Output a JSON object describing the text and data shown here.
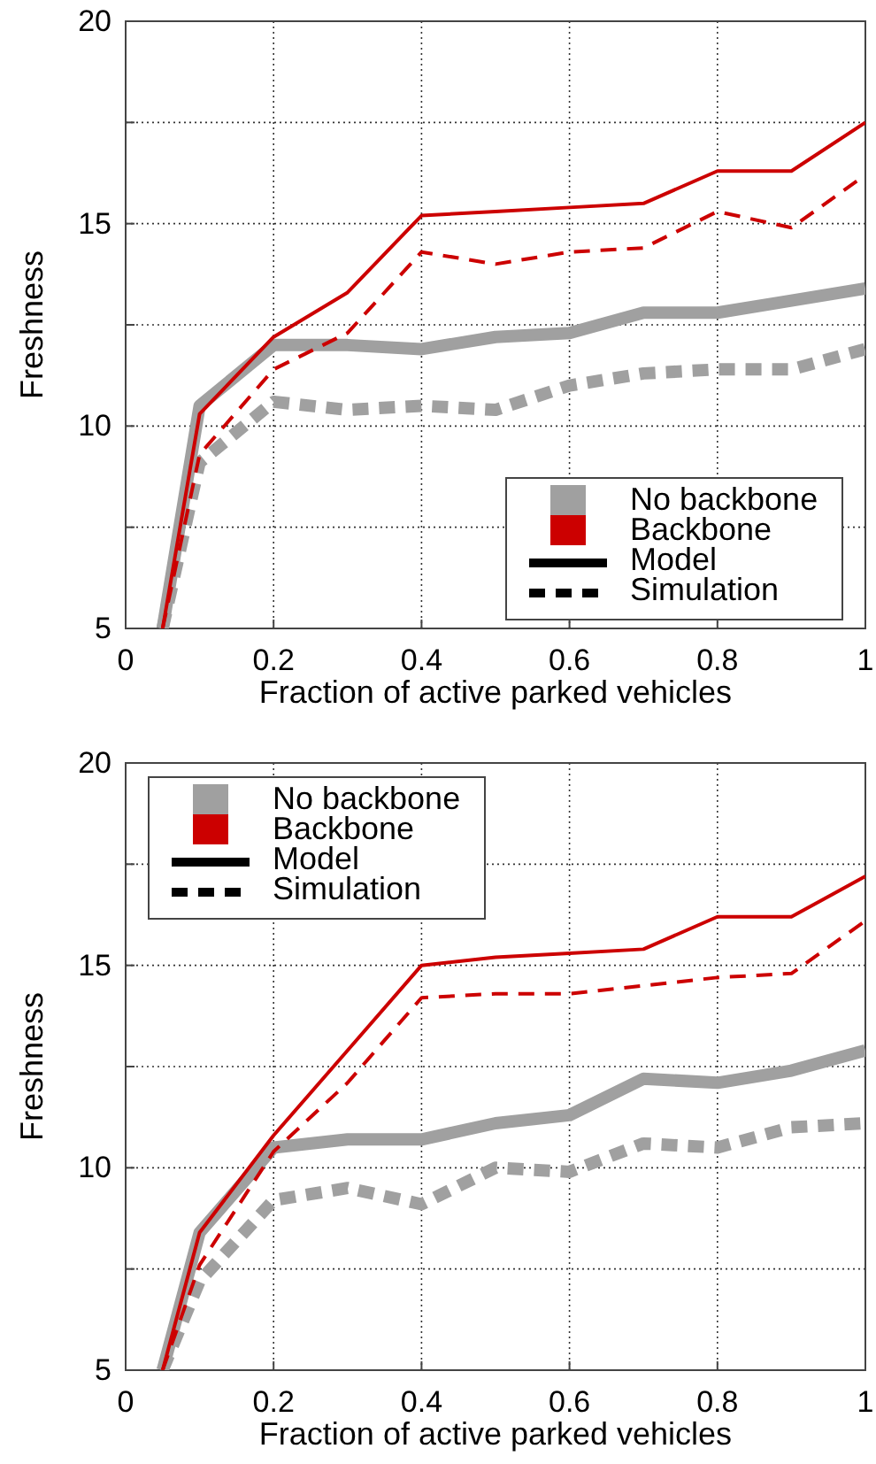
{
  "chart_data": [
    {
      "type": "line",
      "xlabel": "Fraction of active parked vehicles",
      "ylabel": "Freshness",
      "xlim": [
        0,
        1
      ],
      "ylim": [
        5,
        20
      ],
      "xticks": [
        0,
        0.2,
        0.4,
        0.6,
        0.8,
        1
      ],
      "yticks": [
        5,
        {
          "value": 7.5,
          "label": null
        },
        10,
        {
          "value": 12.5,
          "label": null
        },
        15,
        {
          "value": 17.5,
          "label": null
        },
        20
      ],
      "grid": true,
      "marker": "none",
      "annotations": [
        "No backbone",
        "Backbone",
        "Model",
        "Simulation"
      ],
      "series": [
        {
          "color": "#a0a0a0",
          "line_style": "solid",
          "x": [
            0.05,
            0.1,
            0.2,
            0.3,
            0.4,
            0.5,
            0.6,
            0.7,
            0.8,
            0.9,
            1
          ],
          "values": [
            5,
            10.5,
            12,
            12,
            11.9,
            12.2,
            12.3,
            12.8,
            12.8,
            13.1,
            13.4
          ]
        },
        {
          "color": "#a0a0a0",
          "line_style": "dashed",
          "x": [
            0.05,
            0.1,
            0.2,
            0.3,
            0.4,
            0.5,
            0.6,
            0.7,
            0.8,
            0.9,
            1
          ],
          "values": [
            5,
            9.1,
            10.6,
            10.4,
            10.5,
            10.4,
            11,
            11.3,
            11.4,
            11.4,
            11.9
          ]
        },
        {
          "color": "#cc0000",
          "line_style": "solid",
          "x": [
            0.05,
            0.1,
            0.2,
            0.3,
            0.4,
            0.5,
            0.6,
            0.7,
            0.8,
            0.9,
            1
          ],
          "values": [
            5,
            10.3,
            12.2,
            13.3,
            15.2,
            15.3,
            15.4,
            15.5,
            16.3,
            16.3,
            17.5
          ]
        },
        {
          "color": "#cc0000",
          "line_style": "dashed",
          "x": [
            0.05,
            0.1,
            0.2,
            0.3,
            0.4,
            0.5,
            0.6,
            0.7,
            0.8,
            0.9,
            1
          ],
          "values": [
            5,
            9.3,
            11.4,
            12.3,
            14.3,
            14,
            14.3,
            14.4,
            15.3,
            14.9,
            16.2
          ]
        }
      ]
    },
    {
      "type": "line",
      "xlabel": "Fraction of active parked vehicles",
      "ylabel": "Freshness",
      "xlim": [
        0,
        1
      ],
      "ylim": [
        5,
        20
      ],
      "xticks": [
        0,
        0.2,
        0.4,
        0.6,
        0.8,
        1
      ],
      "yticks": [
        5,
        {
          "value": 7.5,
          "label": null
        },
        10,
        {
          "value": 12.5,
          "label": null
        },
        15,
        {
          "value": 17.5,
          "label": null
        },
        20
      ],
      "grid": true,
      "marker": "none",
      "annotations": [
        "No backbone",
        "Backbone",
        "Model",
        "Simulation"
      ],
      "series": [
        {
          "color": "#a0a0a0",
          "line_style": "solid",
          "x": [
            0.05,
            0.1,
            0.2,
            0.3,
            0.4,
            0.5,
            0.6,
            0.7,
            0.8,
            0.9,
            1
          ],
          "values": [
            5,
            8.4,
            10.5,
            10.7,
            10.7,
            11.1,
            11.3,
            12.2,
            12.1,
            12.4,
            12.9
          ]
        },
        {
          "color": "#a0a0a0",
          "line_style": "dashed",
          "x": [
            0.05,
            0.1,
            0.2,
            0.3,
            0.4,
            0.5,
            0.6,
            0.7,
            0.8,
            0.9,
            1
          ],
          "values": [
            5,
            7.2,
            9.2,
            9.5,
            9.1,
            10,
            9.9,
            10.6,
            10.5,
            11,
            11.1
          ]
        },
        {
          "color": "#cc0000",
          "line_style": "solid",
          "x": [
            0.05,
            0.1,
            0.2,
            0.3,
            0.4,
            0.5,
            0.6,
            0.7,
            0.8,
            0.9,
            1
          ],
          "values": [
            5,
            8.4,
            10.8,
            12.9,
            15,
            15.2,
            15.3,
            15.4,
            16.2,
            16.2,
            17.2
          ]
        },
        {
          "color": "#cc0000",
          "line_style": "dashed",
          "x": [
            0.05,
            0.1,
            0.2,
            0.3,
            0.4,
            0.5,
            0.6,
            0.7,
            0.8,
            0.9,
            1
          ],
          "values": [
            5,
            7.6,
            10.4,
            12.1,
            14.2,
            14.3,
            14.3,
            14.5,
            14.7,
            14.8,
            16.1
          ]
        }
      ]
    }
  ]
}
